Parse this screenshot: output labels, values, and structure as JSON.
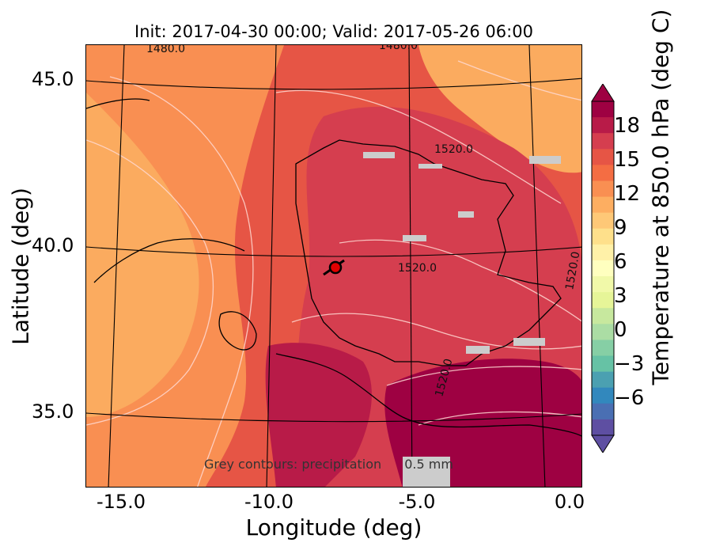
{
  "title": "Init: 2017-04-30 00:00; Valid: 2017-05-26 06:00",
  "xlabel": "Longitude (deg)",
  "ylabel": "Latitude (deg)",
  "xticks": [
    "-15.0",
    "-10.0",
    "-5.0",
    "0.0"
  ],
  "yticks": [
    "45.0",
    "40.0",
    "35.0"
  ],
  "colorbar": {
    "label": "Temperature at 850.0 hPa (deg C)",
    "ticks": [
      "18",
      "15",
      "12",
      "9",
      "6",
      "3",
      "0",
      "−3",
      "−6"
    ],
    "colors_top_to_bottom": [
      "#9e0142",
      "#b81b48",
      "#d53e4f",
      "#e65545",
      "#f46d43",
      "#f98f52",
      "#fdae61",
      "#fec877",
      "#fee08b",
      "#fff1a8",
      "#ffffbf",
      "#f1f9a9",
      "#e6f598",
      "#c7e89e",
      "#abdda4",
      "#86cfa5",
      "#66c2a5",
      "#4ba0b1",
      "#3288bd",
      "#4a6fb3",
      "#5e4fa2"
    ]
  },
  "contour_labels": [
    "1480.0",
    "1480.0",
    "1520.0",
    "1520.0",
    "1520.0",
    "1520.0"
  ],
  "footer_note": "Grey contours: precipitation",
  "footer_value": "0.5 mm",
  "marker": {
    "label": "station-marker",
    "color": "#e00000"
  }
}
